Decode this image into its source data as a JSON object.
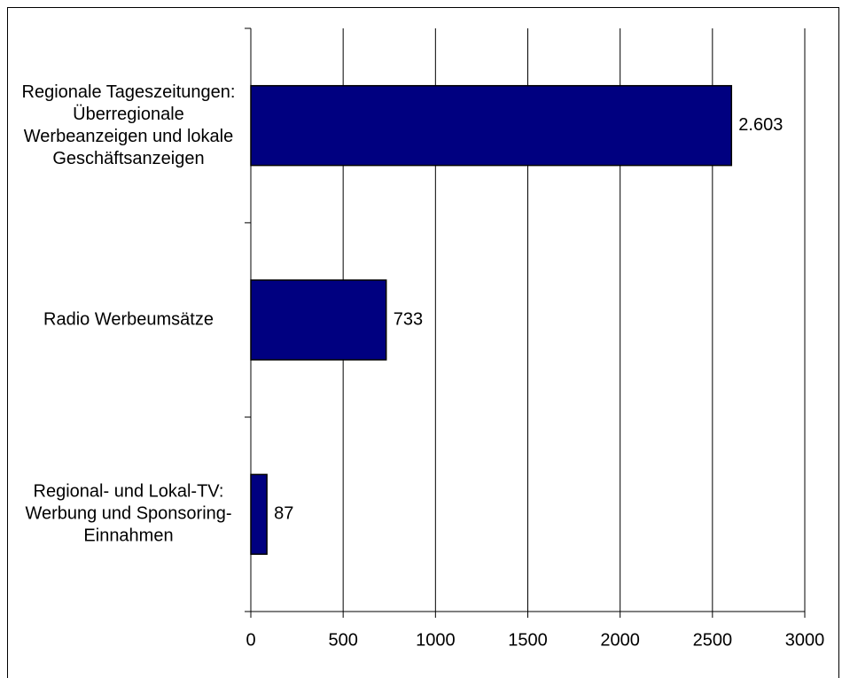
{
  "chart_data": {
    "type": "bar",
    "orientation": "horizontal",
    "categories": [
      "Regionale Tageszeitungen: Überregionale Werbeanzeigen und lokale Geschäftsanzeigen",
      "Radio Werbeumsätze",
      "Regional- und Lokal-TV: Werbung und Sponsoring-Einnahmen"
    ],
    "values": [
      2603,
      733,
      87
    ],
    "value_labels": [
      "2.603",
      "733",
      "87"
    ],
    "color": "#000080",
    "xlim": [
      0,
      3000
    ],
    "xticks": [
      0,
      500,
      1000,
      1500,
      2000,
      2500,
      3000
    ],
    "grid": true
  }
}
